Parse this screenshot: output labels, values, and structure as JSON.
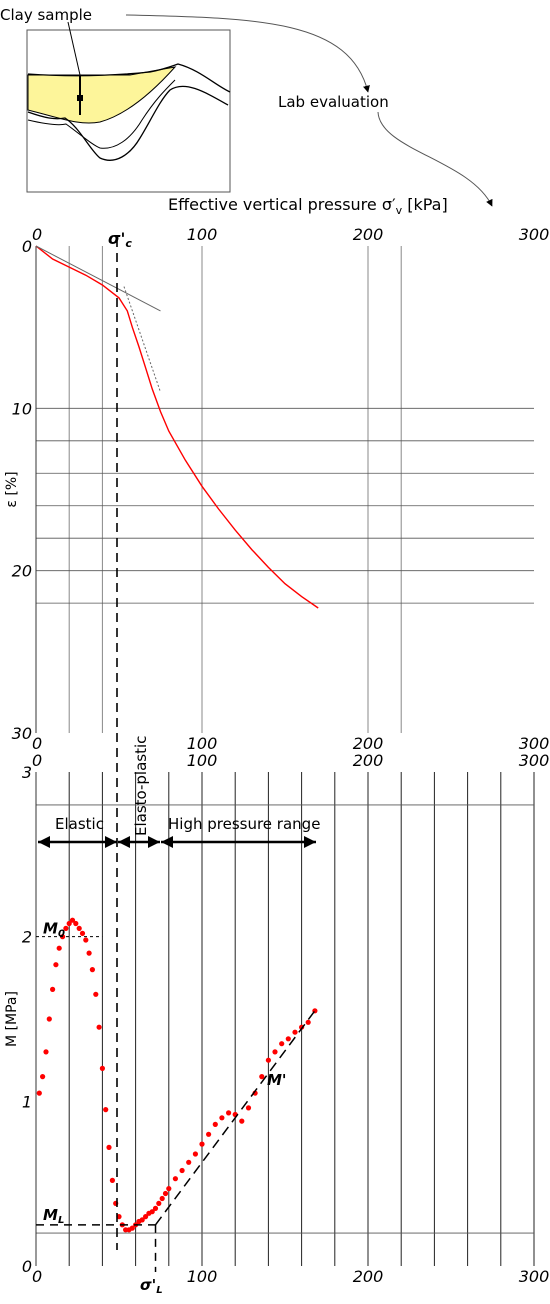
{
  "sketch": {
    "label": "Clay sample",
    "lab_label": "Lab evaluation",
    "axis_title_prefix": "Effective vertical pressure σ′",
    "axis_title_sub": "v",
    "axis_title_unit": " [kPa]",
    "colors": {
      "clay_fill": "#fdf59a",
      "outline": "#000000"
    }
  },
  "markers": {
    "sigma_c": "σ'",
    "sigma_c_sub": "c",
    "sigma_L": "σ'",
    "sigma_L_sub": "L",
    "M0": "M",
    "M0_sub": "0",
    "ML": "M",
    "ML_sub": "L",
    "M_prime": "M'"
  },
  "regions": {
    "elastic": "Elastic",
    "elasto_plastic": "Elasto-plastic",
    "high_pressure": "High pressure range"
  },
  "chart_data": [
    {
      "type": "line",
      "title": "",
      "xlabel": "",
      "ylabel": "ε [%]",
      "x_ticks": [
        "0",
        "100",
        "200",
        "300"
      ],
      "y_ticks": [
        "0",
        "10",
        "20",
        "30"
      ],
      "xlim": [
        0,
        300
      ],
      "ylim": [
        0,
        30
      ],
      "y_inverted": true,
      "color": "#ff0000",
      "series": [
        {
          "x": [
            0,
            10,
            20,
            30,
            40,
            50,
            55,
            58,
            62,
            66,
            70,
            75,
            80,
            90,
            100,
            110,
            120,
            130,
            140,
            150,
            160,
            170
          ],
          "y": [
            0,
            0.8,
            1.3,
            1.8,
            2.4,
            3.2,
            4.0,
            5.0,
            6.2,
            7.5,
            8.8,
            10.2,
            11.4,
            13.2,
            14.8,
            16.2,
            17.5,
            18.7,
            19.8,
            20.8,
            21.6,
            22.3
          ]
        }
      ],
      "reference_lines": {
        "elastic_tangent": {
          "x": [
            0,
            75
          ],
          "y": [
            0,
            4.0
          ]
        },
        "plastic_tangent": {
          "x": [
            53,
            75
          ],
          "y": [
            2.5,
            9.0
          ]
        },
        "sigma_c_x": 50
      }
    },
    {
      "type": "scatter",
      "title": "",
      "xlabel": "",
      "ylabel": "M [MPa]",
      "x_ticks": [
        "0",
        "100",
        "200",
        "300"
      ],
      "y_ticks": [
        "0",
        "1",
        "2",
        "3"
      ],
      "xlim": [
        0,
        300
      ],
      "ylim": [
        0,
        3
      ],
      "color": "#ff0000",
      "series": [
        {
          "x": [
            2,
            4,
            6,
            8,
            10,
            12,
            14,
            16,
            18,
            20,
            22,
            24,
            26,
            28,
            30,
            32,
            34,
            36,
            38,
            40,
            42,
            44,
            46,
            48,
            50,
            52,
            54,
            56,
            58,
            60,
            62,
            64,
            66,
            68,
            70,
            72,
            74,
            76,
            78,
            80,
            84,
            88,
            92,
            96,
            100,
            104,
            108,
            112,
            116,
            120,
            124,
            128,
            132,
            136,
            140,
            144,
            148,
            152,
            156,
            160,
            164,
            168
          ],
          "y": [
            1.05,
            1.15,
            1.3,
            1.5,
            1.68,
            1.83,
            1.93,
            2.0,
            2.05,
            2.08,
            2.1,
            2.08,
            2.05,
            2.02,
            1.98,
            1.9,
            1.8,
            1.65,
            1.45,
            1.2,
            0.95,
            0.72,
            0.52,
            0.38,
            0.3,
            0.25,
            0.22,
            0.22,
            0.23,
            0.25,
            0.27,
            0.28,
            0.3,
            0.32,
            0.33,
            0.35,
            0.38,
            0.41,
            0.44,
            0.47,
            0.53,
            0.58,
            0.63,
            0.68,
            0.74,
            0.8,
            0.86,
            0.9,
            0.93,
            0.92,
            0.88,
            0.96,
            1.05,
            1.15,
            1.25,
            1.3,
            1.35,
            1.38,
            1.42,
            1.45,
            1.48,
            1.55
          ]
        }
      ],
      "reference_lines": {
        "M0_value": 2.0,
        "ML_value": 0.25,
        "sigma_L_x": 72,
        "M_prime_line": {
          "x": [
            72,
            168
          ],
          "y": [
            0.25,
            1.55
          ]
        }
      }
    }
  ]
}
